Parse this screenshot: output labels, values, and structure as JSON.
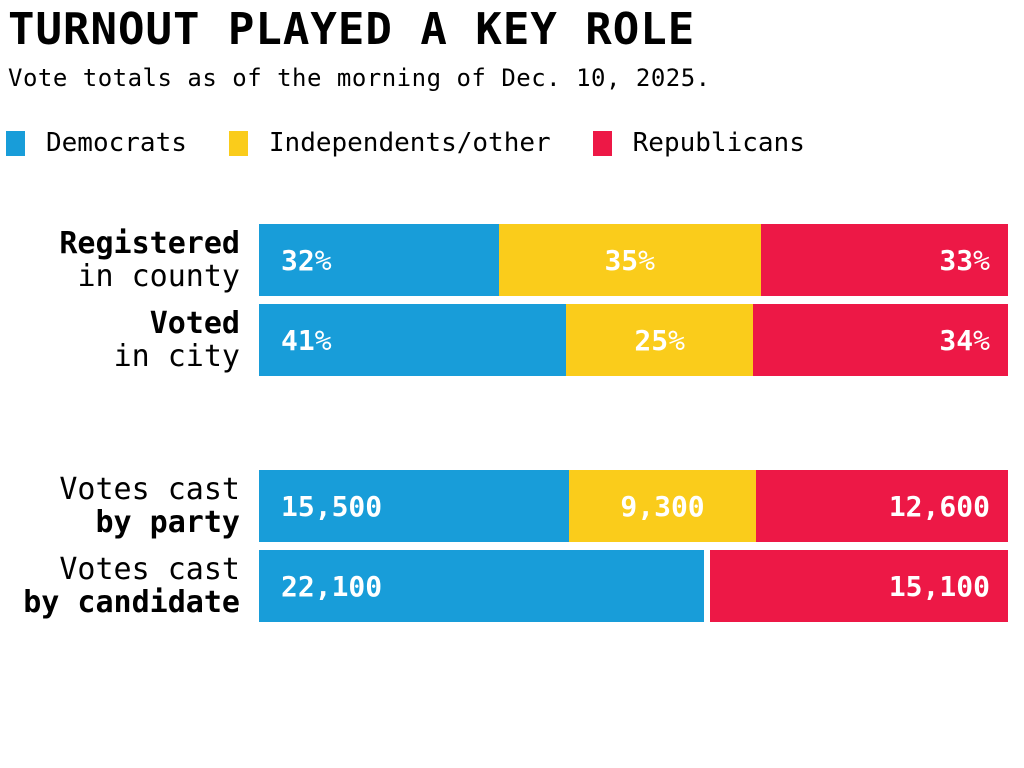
{
  "colors": {
    "democrats": "#189DD9",
    "independents": "#FACC1B",
    "republicans": "#ED1846",
    "background": "#FFFFFF",
    "text": "#000000",
    "value_label": "#FFFFFF"
  },
  "header": {
    "title": "TURNOUT PLAYED A KEY ROLE",
    "subtitle": "Vote totals as of the morning of Dec. 10, 2025."
  },
  "legend": [
    {
      "label": "Democrats",
      "color": "#189DD9"
    },
    {
      "label": "Independents/other",
      "color": "#FACC1B"
    },
    {
      "label": "Republicans",
      "color": "#ED1846"
    }
  ],
  "chart_data": {
    "type": "bar",
    "subtype": "horizontal-stacked",
    "title": "TURNOUT PLAYED A KEY ROLE",
    "subtitle": "Vote totals as of the morning of Dec. 10, 2025.",
    "legend_position": "top",
    "series_names": [
      "Democrats",
      "Independents/other",
      "Republicans"
    ],
    "rows": [
      {
        "label_line1": "Registered",
        "label_line2": "in county",
        "unit": "percent",
        "segments": [
          {
            "party": "Democrats",
            "value": 32,
            "display": "32",
            "suffix": "%"
          },
          {
            "party": "Independents/other",
            "value": 35,
            "display": "35",
            "suffix": "%"
          },
          {
            "party": "Republicans",
            "value": 33,
            "display": "33",
            "suffix": "%"
          }
        ]
      },
      {
        "label_line1": "Voted",
        "label_line2": "in city",
        "unit": "percent",
        "segments": [
          {
            "party": "Democrats",
            "value": 41,
            "display": "41",
            "suffix": "%"
          },
          {
            "party": "Independents/other",
            "value": 25,
            "display": "25",
            "suffix": "%"
          },
          {
            "party": "Republicans",
            "value": 34,
            "display": "34",
            "suffix": "%"
          }
        ]
      },
      {
        "label_line1": "Votes cast",
        "label_line2": "by party",
        "unit": "votes",
        "segments": [
          {
            "party": "Democrats",
            "value": 15500,
            "display": "15,500",
            "suffix": ""
          },
          {
            "party": "Independents/other",
            "value": 9300,
            "display": "9,300",
            "suffix": ""
          },
          {
            "party": "Republicans",
            "value": 12600,
            "display": "12,600",
            "suffix": ""
          }
        ]
      },
      {
        "label_line1": "Votes cast",
        "label_line2": "by candidate",
        "unit": "votes",
        "segments": [
          {
            "party": "Democrats",
            "value": 22100,
            "display": "22,100",
            "suffix": ""
          },
          {
            "party": "Republicans",
            "value": 15100,
            "display": "15,100",
            "suffix": ""
          }
        ]
      }
    ]
  }
}
